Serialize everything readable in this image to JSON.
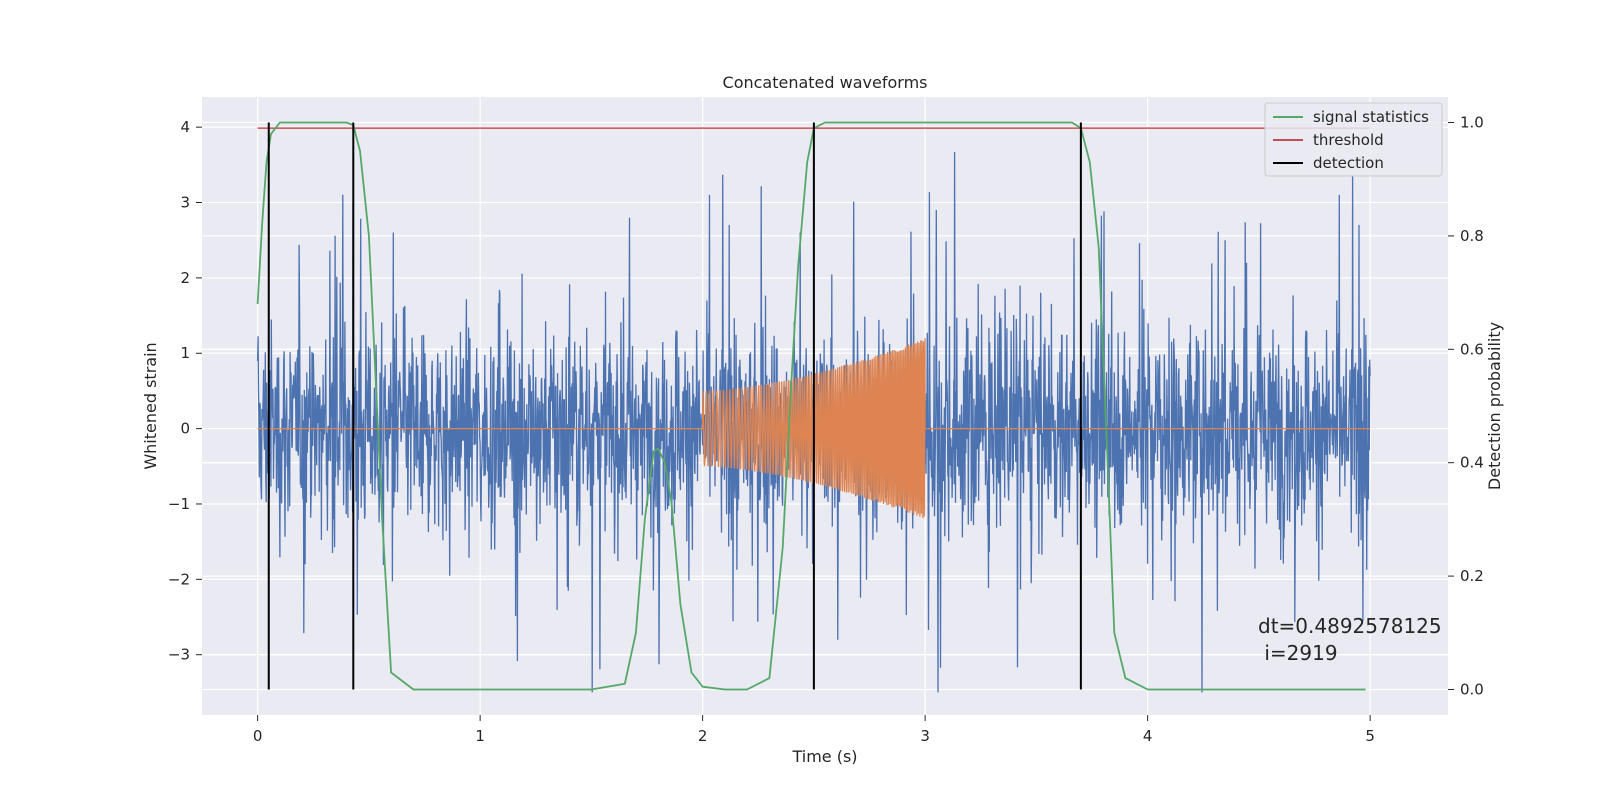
{
  "chart_data": {
    "type": "line",
    "title": "Concatenated waveforms",
    "xlabel": "Time (s)",
    "ylabel_left": "Whitened strain",
    "ylabel_right": "Detection probability",
    "xlim": [
      -0.25,
      5.35
    ],
    "ylim_left": [
      -3.8,
      4.4
    ],
    "ylim_right": [
      -0.045,
      1.045
    ],
    "xticks": [
      0,
      1,
      2,
      3,
      4,
      5
    ],
    "xtick_labels": [
      "0",
      "1",
      "2",
      "3",
      "4",
      "5"
    ],
    "yticks_left": [
      -3,
      -2,
      -1,
      0,
      1,
      2,
      3,
      4
    ],
    "ytick_labels_left": [
      "−3",
      "−2",
      "−1",
      "0",
      "1",
      "2",
      "3",
      "4"
    ],
    "yticks_right": [
      0.0,
      0.2,
      0.4,
      0.6,
      0.8,
      1.0
    ],
    "ytick_labels_right": [
      "0.0",
      "0.2",
      "0.4",
      "0.6",
      "0.8",
      "1.0"
    ],
    "grid": true,
    "legend_position": "top-right",
    "background_color": "#eaeaf2",
    "series": [
      {
        "name": "",
        "kind": "noise",
        "color": "#4c72b0",
        "x_range": [
          0,
          5
        ],
        "y_range_approx": [
          -3.5,
          4.2
        ]
      },
      {
        "name": "",
        "kind": "chirp",
        "color": "#dd8452",
        "flat_x_range": [
          0,
          5
        ],
        "chirp_x_range": [
          2,
          3
        ],
        "amplitude_start": 0.5,
        "amplitude_end": 1.2
      },
      {
        "name": "signal statistics",
        "axis": "right",
        "color": "#55a868",
        "x": [
          0,
          0.02,
          0.04,
          0.06,
          0.1,
          0.15,
          0.4,
          0.43,
          0.46,
          0.5,
          0.53,
          0.56,
          0.6,
          0.7,
          1.0,
          1.5,
          1.65,
          1.7,
          1.74,
          1.78,
          1.8,
          1.83,
          1.86,
          1.9,
          1.95,
          2.0,
          2.1,
          2.2,
          2.3,
          2.36,
          2.4,
          2.43,
          2.47,
          2.5,
          2.55,
          2.6,
          3.0,
          3.5,
          3.66,
          3.7,
          3.74,
          3.78,
          3.82,
          3.85,
          3.9,
          4.0,
          4.5,
          4.98
        ],
        "y": [
          0.68,
          0.82,
          0.93,
          0.98,
          1.0,
          1.0,
          1.0,
          0.995,
          0.95,
          0.8,
          0.55,
          0.3,
          0.03,
          0.0,
          0.0,
          0.0,
          0.01,
          0.1,
          0.3,
          0.42,
          0.425,
          0.4,
          0.33,
          0.15,
          0.03,
          0.005,
          0.0,
          0.0,
          0.02,
          0.25,
          0.55,
          0.75,
          0.93,
          0.99,
          1.0,
          1.0,
          1.0,
          1.0,
          1.0,
          0.99,
          0.93,
          0.78,
          0.4,
          0.1,
          0.02,
          0.0,
          0.0,
          0.0
        ]
      },
      {
        "name": "threshold",
        "axis": "right",
        "color": "#c44e52",
        "x": [
          0,
          5
        ],
        "y": [
          0.99,
          0.99
        ]
      },
      {
        "name": "detection",
        "axis": "right",
        "color": "#000000",
        "x": [
          0.05,
          0.43,
          2.5,
          3.7
        ],
        "y_from": 0.0,
        "y_to": 1.0
      }
    ],
    "annotation": {
      "line1": "dt=0.4892578125",
      "line2": " i=2919"
    }
  }
}
